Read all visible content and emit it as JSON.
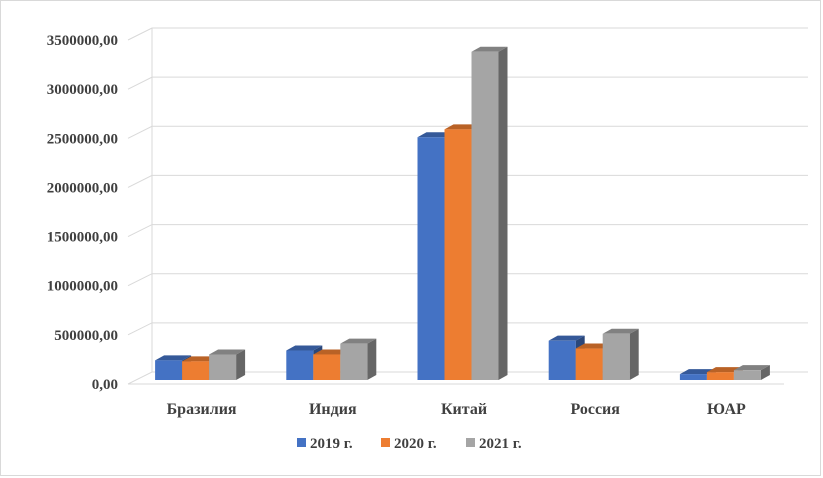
{
  "chart_data": {
    "type": "bar",
    "title": "",
    "xlabel": "",
    "ylabel": "",
    "categories": [
      "Бразилия",
      "Индия",
      "Китай",
      "Россия",
      "ЮАР"
    ],
    "series": [
      {
        "name": "2019 г.",
        "color": "#4472c4",
        "values": [
          200000,
          300000,
          2470000,
          400000,
          60000
        ]
      },
      {
        "name": "2020 г.",
        "color": "#ed7d31",
        "values": [
          190000,
          260000,
          2550000,
          320000,
          80000
        ]
      },
      {
        "name": "2021 г.",
        "color": "#a5a5a5",
        "values": [
          260000,
          370000,
          3340000,
          470000,
          100000
        ]
      }
    ],
    "yticks": [
      0,
      500000,
      1000000,
      1500000,
      2000000,
      2500000,
      3000000,
      3500000
    ],
    "ytick_labels": [
      "0,00",
      "500000,00",
      "1000000,00",
      "1500000,00",
      "2000000,00",
      "2500000,00",
      "3000000,00",
      "3500000,00"
    ],
    "ylim": [
      0,
      3500000
    ],
    "grid": true,
    "legend_position": "bottom",
    "style": "3d-clustered-column"
  }
}
